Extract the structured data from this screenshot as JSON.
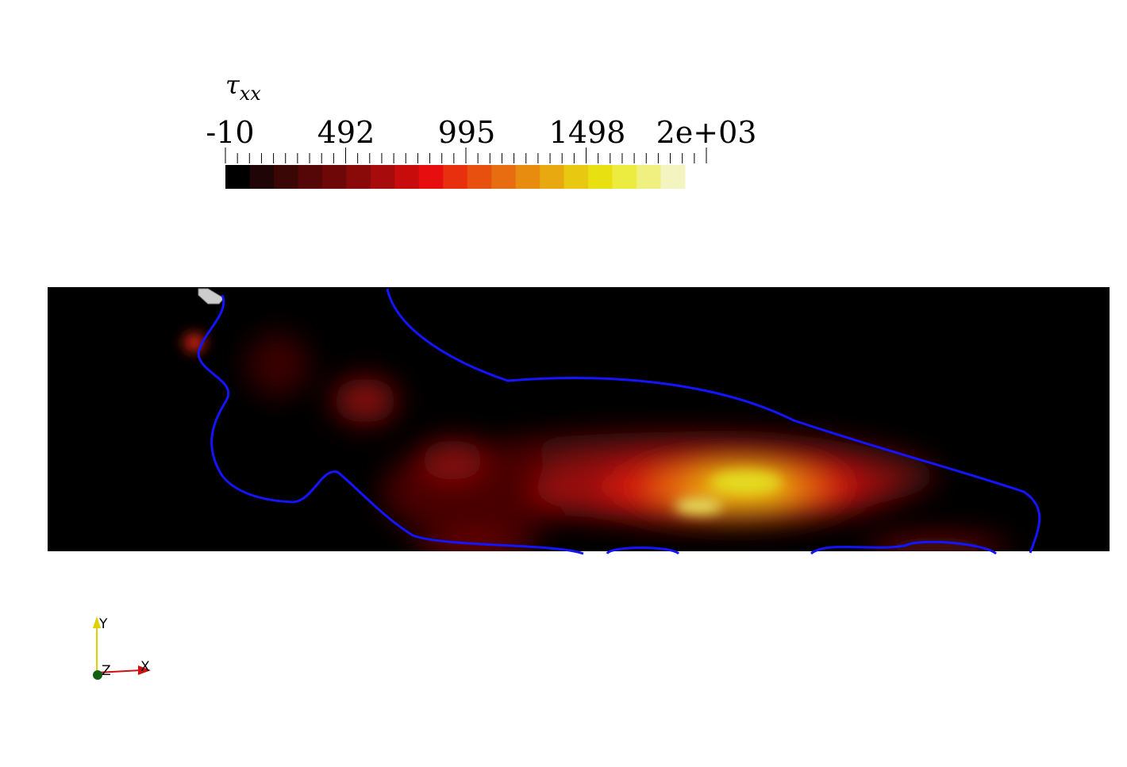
{
  "colorbar": {
    "title": {
      "symbol": "τ",
      "subscript": "xx"
    },
    "labels": [
      "-10",
      "492",
      "995",
      "1498",
      "2e+03"
    ]
  },
  "axes": {
    "y": "Y",
    "z": "Z",
    "x": "X"
  }
}
